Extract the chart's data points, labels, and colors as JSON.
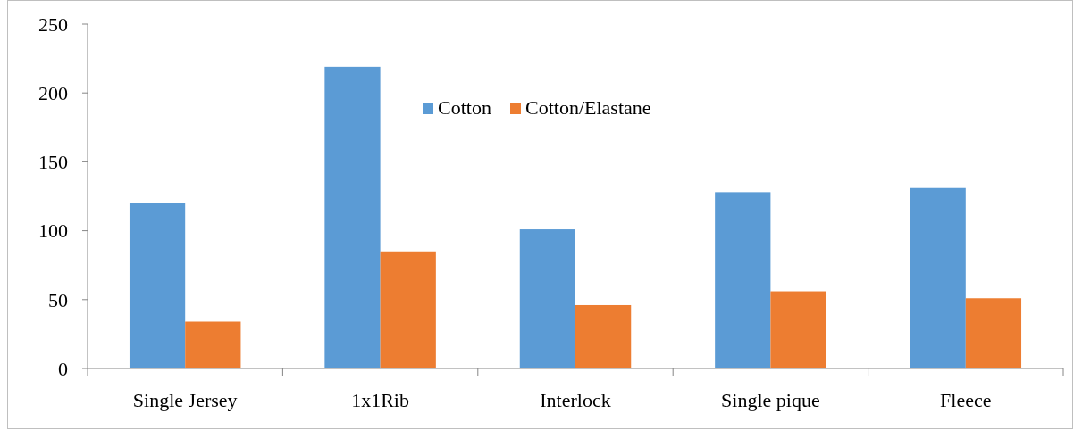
{
  "chart_data": {
    "type": "bar",
    "categories": [
      "Single Jersey",
      "1x1Rib",
      "Interlock",
      "Single pique",
      "Fleece"
    ],
    "series": [
      {
        "name": "Cotton",
        "color": "#5b9bd5",
        "values": [
          120,
          219,
          101,
          128,
          131
        ]
      },
      {
        "name": "Cotton/Elastane",
        "color": "#ed7d31",
        "values": [
          34,
          85,
          46,
          56,
          51
        ]
      }
    ],
    "ylim": [
      0,
      250
    ],
    "yticks": [
      0,
      50,
      100,
      150,
      200,
      250
    ],
    "grid": false,
    "legend": "top"
  }
}
